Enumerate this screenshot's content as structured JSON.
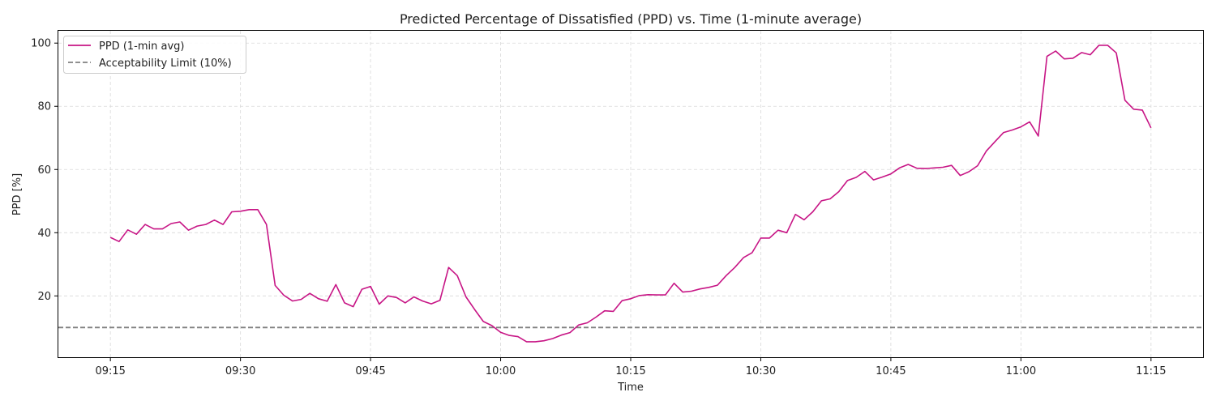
{
  "chart_data": {
    "type": "line",
    "title": "Predicted Percentage of Dissatisfied (PPD) vs. Time (1-minute average)",
    "xlabel": "Time",
    "ylabel": "PPD [%]",
    "x_ticks": [
      "09:15",
      "09:30",
      "09:45",
      "10:00",
      "10:15",
      "10:30",
      "10:45",
      "11:00",
      "11:15"
    ],
    "y_ticks": [
      20,
      40,
      60,
      80,
      100
    ],
    "xlim": [
      "09:09",
      "11:21"
    ],
    "ylim": [
      0.6,
      103.9
    ],
    "grid": true,
    "legend_position": "top-left",
    "series": [
      {
        "name": "PPD (1-min avg)",
        "color": "#c71585",
        "x": [
          "09:15",
          "09:16",
          "09:17",
          "09:18",
          "09:19",
          "09:20",
          "09:21",
          "09:22",
          "09:23",
          "09:24",
          "09:25",
          "09:26",
          "09:27",
          "09:28",
          "09:29",
          "09:30",
          "09:31",
          "09:32",
          "09:33",
          "09:34",
          "09:35",
          "09:36",
          "09:37",
          "09:38",
          "09:39",
          "09:40",
          "09:41",
          "09:42",
          "09:43",
          "09:44",
          "09:45",
          "09:46",
          "09:47",
          "09:48",
          "09:49",
          "09:50",
          "09:51",
          "09:52",
          "09:53",
          "09:54",
          "09:55",
          "09:56",
          "09:57",
          "09:58",
          "09:59",
          "10:00",
          "10:01",
          "10:02",
          "10:03",
          "10:04",
          "10:05",
          "10:06",
          "10:07",
          "10:08",
          "10:09",
          "10:10",
          "10:11",
          "10:12",
          "10:13",
          "10:14",
          "10:15",
          "10:16",
          "10:17",
          "10:18",
          "10:19",
          "10:20",
          "10:21",
          "10:22",
          "10:23",
          "10:24",
          "10:25",
          "10:26",
          "10:27",
          "10:28",
          "10:29",
          "10:30",
          "10:31",
          "10:32",
          "10:33",
          "10:34",
          "10:35",
          "10:36",
          "10:37",
          "10:38",
          "10:39",
          "10:40",
          "10:41",
          "10:42",
          "10:43",
          "10:44",
          "10:45",
          "10:46",
          "10:47",
          "10:48",
          "10:49",
          "10:50",
          "10:51",
          "10:52",
          "10:53",
          "10:54",
          "10:55",
          "10:56",
          "10:57",
          "10:58",
          "10:59",
          "11:00",
          "11:01",
          "11:02",
          "11:03",
          "11:04",
          "11:05",
          "11:06",
          "11:07",
          "11:08",
          "11:09",
          "11:10",
          "11:11",
          "11:12",
          "11:13",
          "11:14",
          "11:15"
        ],
        "values": [
          38.5,
          37.2,
          40.9,
          39.5,
          42.6,
          41.2,
          41.2,
          42.9,
          43.4,
          40.8,
          42.1,
          42.6,
          44.0,
          42.6,
          46.6,
          46.8,
          47.3,
          47.3,
          42.6,
          23.3,
          20.2,
          18.4,
          18.9,
          20.8,
          19.1,
          18.3,
          23.6,
          17.8,
          16.6,
          22.1,
          23.0,
          17.4,
          20.0,
          19.5,
          17.8,
          19.7,
          18.4,
          17.5,
          18.6,
          29.0,
          26.4,
          19.7,
          15.7,
          11.9,
          10.6,
          8.5,
          7.5,
          7.1,
          5.5,
          5.5,
          5.8,
          6.5,
          7.6,
          8.4,
          10.8,
          11.5,
          13.3,
          15.3,
          15.1,
          18.5,
          19.1,
          20.1,
          20.4,
          20.3,
          20.3,
          24.0,
          21.2,
          21.5,
          22.2,
          22.7,
          23.4,
          26.4,
          29.0,
          32.1,
          33.7,
          38.3,
          38.3,
          40.8,
          40.0,
          45.8,
          44.1,
          46.6,
          50.1,
          50.7,
          53.0,
          56.5,
          57.5,
          59.4,
          56.7,
          57.6,
          58.6,
          60.5,
          61.6,
          60.4,
          60.3,
          60.5,
          60.7,
          61.3,
          58.1,
          59.3,
          61.2,
          65.8,
          68.8,
          71.7,
          72.5,
          73.5,
          75.1,
          70.6,
          95.8,
          97.5,
          95.0,
          95.2,
          97.0,
          96.3,
          99.3,
          99.3,
          96.9,
          81.9,
          79.1,
          78.8,
          73.2
        ]
      },
      {
        "name": "Acceptability Limit (10%)",
        "color": "#808080",
        "type": "hline",
        "y": 10
      }
    ]
  }
}
